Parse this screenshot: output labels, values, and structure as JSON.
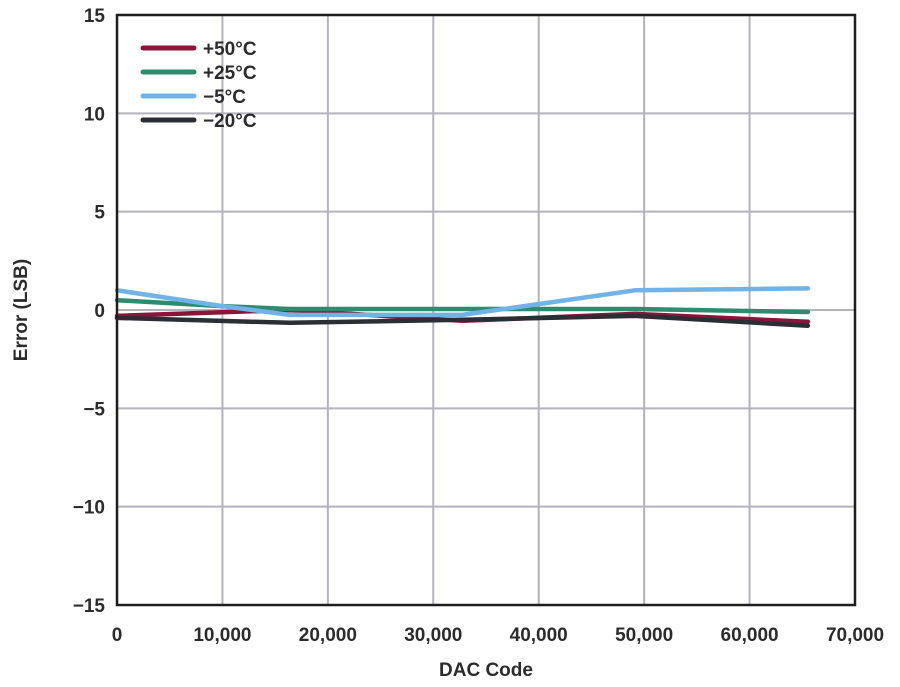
{
  "chart_data": {
    "type": "line",
    "xlabel": "DAC Code",
    "ylabel": "Error (LSB)",
    "xlim": [
      0,
      70000
    ],
    "ylim": [
      -15,
      15
    ],
    "x_ticks": [
      0,
      10000,
      20000,
      30000,
      40000,
      50000,
      60000,
      70000
    ],
    "x_tick_labels": [
      "0",
      "10,000",
      "20,000",
      "30,000",
      "40,000",
      "50,000",
      "60,000",
      "70,000"
    ],
    "y_ticks": [
      15,
      10,
      5,
      0,
      -5,
      -10,
      -15
    ],
    "y_tick_labels": [
      "15",
      "10",
      "5",
      "0",
      "−5",
      "−10",
      "−15"
    ],
    "grid": true,
    "legend_position": "top-left",
    "series": [
      {
        "name": "+50°C",
        "color": "#8a1538",
        "x": [
          0,
          16384,
          32768,
          49152,
          65535
        ],
        "y": [
          -0.3,
          0.0,
          -0.55,
          -0.2,
          -0.6
        ]
      },
      {
        "name": "+25°C",
        "color": "#2e8b6e",
        "x": [
          0,
          10000,
          16384,
          32768,
          49152,
          65535
        ],
        "y": [
          0.5,
          0.2,
          0.05,
          0.05,
          0.05,
          -0.1
        ]
      },
      {
        "name": "−5°C",
        "color": "#6fb3e8",
        "x": [
          0,
          10000,
          16384,
          32768,
          49152,
          65535
        ],
        "y": [
          1.0,
          0.2,
          -0.25,
          -0.25,
          1.0,
          1.1
        ]
      },
      {
        "name": "−20°C",
        "color": "#2c2e35",
        "x": [
          0,
          16384,
          32768,
          49152,
          65535
        ],
        "y": [
          -0.4,
          -0.65,
          -0.5,
          -0.3,
          -0.8
        ]
      }
    ]
  }
}
